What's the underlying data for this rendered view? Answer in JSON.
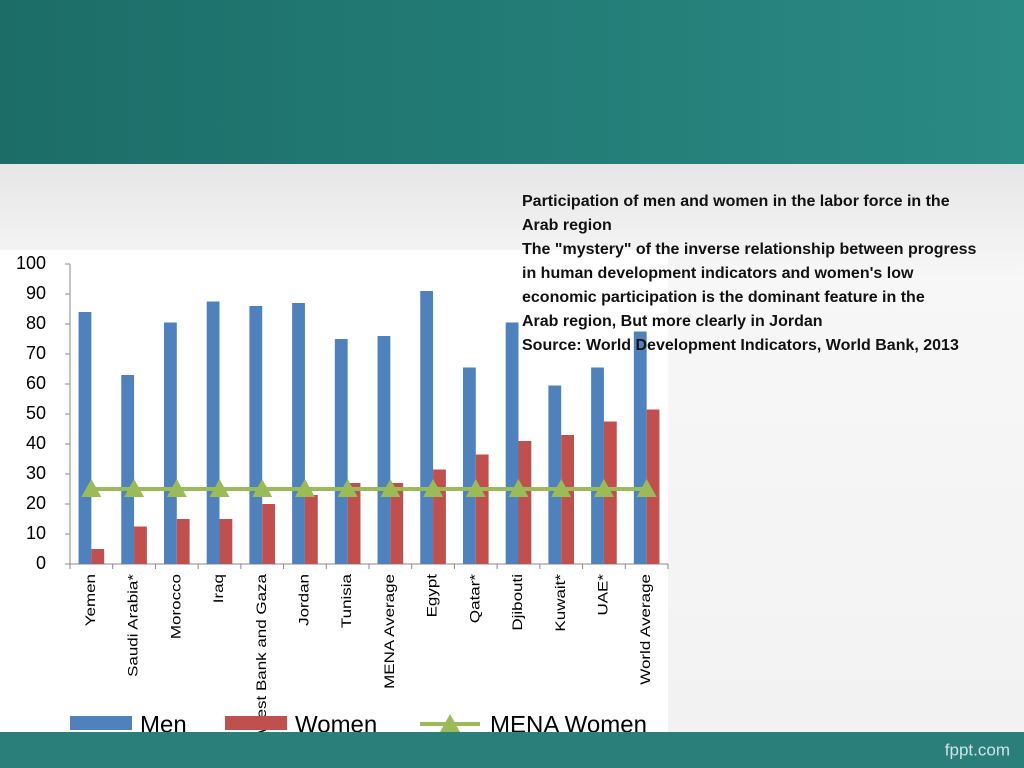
{
  "slide": {
    "text": [
      "Participation of men and women in the labor force in the",
      "Arab region",
      "The \"mystery\" of the inverse relationship between progress",
      "in human development indicators and women's low",
      "economic participation is   the dominant feature in the",
      "Arab region, But more clearly in Jordan",
      "Source: World Development Indicators, World Bank, 2013"
    ],
    "footer": "fppt.com"
  },
  "chart_data": {
    "type": "bar",
    "categories": [
      "Yemen",
      "Saudi Arabia*",
      "Morocco",
      "Iraq",
      "West Bank and Gaza",
      "Jordan",
      "Tunisia",
      "MENA Average",
      "Egypt",
      "Qatar*",
      "Djibouti",
      "Kuwait*",
      "UAE*",
      "World Average"
    ],
    "series": [
      {
        "name": "Men",
        "color": "#4f81bd",
        "values": [
          84,
          63,
          80.5,
          87.5,
          86,
          87,
          75,
          76,
          91,
          65.5,
          80.5,
          59.5,
          65.5,
          77.5
        ]
      },
      {
        "name": "Women",
        "color": "#c0504d",
        "values": [
          5,
          12.5,
          15,
          15,
          20,
          23,
          27,
          27,
          31.5,
          36.5,
          41,
          43,
          47.5,
          51.5
        ]
      },
      {
        "name": "MENA Women",
        "color": "#9bbb59",
        "type": "line",
        "values": [
          25,
          25,
          25,
          25,
          25,
          25,
          25,
          25,
          25,
          25,
          25,
          25,
          25,
          25
        ]
      }
    ],
    "ylim": [
      0,
      100
    ],
    "yticks": [
      0,
      10,
      20,
      30,
      40,
      50,
      60,
      70,
      80,
      90,
      100
    ],
    "legend": "bottom"
  }
}
